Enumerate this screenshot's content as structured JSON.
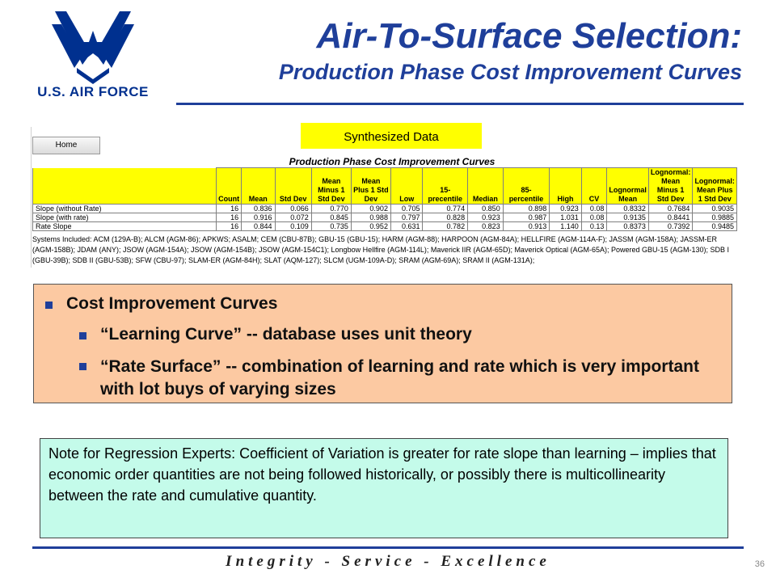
{
  "logo": {
    "text": "U.S. AIR FORCE",
    "icon": "air-force-wings-icon",
    "color": "#00308f"
  },
  "title": {
    "line1": "Air-To-Surface Selection:",
    "line2": "Production Phase Cost Improvement Curves"
  },
  "synth_label": "Synthesized Data",
  "sheet": {
    "home_button": "Home",
    "table_title": "Production Phase Cost Improvement Curves",
    "headers": [
      "Count",
      "Mean",
      "Std Dev",
      "Mean Minus 1 Std Dev",
      "Mean Plus 1 Std Dev",
      "Low",
      "15-precentile",
      "Median",
      "85-percentile",
      "High",
      "CV",
      "Lognormal Mean",
      "Lognormal: Mean Minus 1 Std Dev",
      "Lognormal: Mean Plus 1 Std Dev"
    ],
    "rows": [
      {
        "label": "Slope (without Rate)",
        "values": [
          "16",
          "0.836",
          "0.066",
          "0.770",
          "0.902",
          "0.705",
          "0.774",
          "0.850",
          "0.898",
          "0.923",
          "0.08",
          "0.8332",
          "0.7684",
          "0.9035"
        ]
      },
      {
        "label": "Slope (with rate)",
        "values": [
          "16",
          "0.916",
          "0.072",
          "0.845",
          "0.988",
          "0.797",
          "0.828",
          "0.923",
          "0.987",
          "1.031",
          "0.08",
          "0.9135",
          "0.8441",
          "0.9885"
        ]
      },
      {
        "label": "Rate Slope",
        "values": [
          "16",
          "0.844",
          "0.109",
          "0.735",
          "0.952",
          "0.631",
          "0.782",
          "0.823",
          "0.913",
          "1.140",
          "0.13",
          "0.8373",
          "0.7392",
          "0.9485"
        ]
      }
    ],
    "systems_text": "Systems Included: ACM (129A-B); ALCM (AGM-86); APKWS; ASALM; CEM (CBU-87B); GBU-15 (GBU-15); HARM (AGM-88); HARPOON (AGM-84A); HELLFIRE (AGM-114A-F); JASSM (AGM-158A); JASSM-ER (AGM-158B); JDAM (ANY); JSOW (AGM-154A); JSOW (AGM-154B); JSOW (AGM-154C1); Longbow Hellfire (AGM-114L); Maverick IIR (AGM-65D); Maverick Optical (AGM-65A); Powered GBU-15 (AGM-130); SDB I (GBU-39B); SDB II (GBU-53B); SFW (CBU-97); SLAM-ER (AGM-84H); SLAT (AQM-127); SLCM (UGM-109A-D); SRAM (AGM-69A); SRAM II (AGM-131A);"
  },
  "bullets": {
    "main": "Cost Improvement Curves",
    "sub1": "“Learning Curve”  --  database uses unit theory",
    "sub2": "“Rate Surface”  -- combination of learning and rate which is very important with lot buys of varying sizes"
  },
  "note": "Note for Regression Experts:  Coefficient of Variation is greater for rate slope than learning – implies that economic order quantities are not being followed historically, or possibly there is multicollinearity between the rate and cumulative quantity.",
  "footer": "Integrity - Service - Excellence",
  "page_number": "36",
  "colors": {
    "accent": "#1f3f9a",
    "highlight": "#ffff00",
    "orange_box": "#fcc9a2",
    "note_box": "#c4fbea"
  }
}
